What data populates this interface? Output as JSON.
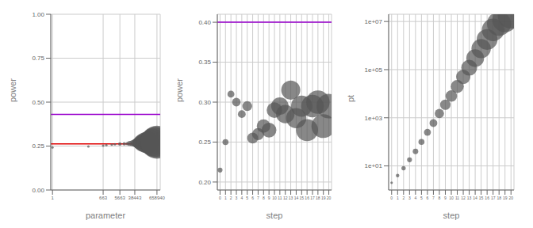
{
  "chart_data": [
    {
      "type": "scatter",
      "xlabel": "parameter",
      "ylabel": "power",
      "log": "x",
      "grid": true,
      "color": "#555555",
      "x": [
        1,
        100,
        663,
        1000,
        2000,
        3000,
        5663,
        10000,
        15000,
        20000,
        28000,
        38443,
        50000,
        65000,
        80000,
        100000,
        150000,
        200000,
        300000,
        400000,
        500000,
        600000,
        658940
      ],
      "values": [
        0.242,
        0.248,
        0.252,
        0.255,
        0.258,
        0.26,
        0.262,
        0.263,
        0.264,
        0.265,
        0.266,
        0.267,
        0.268,
        0.268,
        0.269,
        0.269,
        0.27,
        0.27,
        0.271,
        0.271,
        0.272,
        0.272,
        0.272
      ],
      "sizes": [
        5,
        5,
        5,
        5,
        5,
        5,
        10,
        10,
        10,
        20,
        30,
        50,
        80,
        120,
        180,
        250,
        350,
        400,
        500,
        600,
        700,
        800,
        900
      ],
      "xlim": [
        0.8,
        1000000
      ],
      "xticks": [
        1,
        663,
        5663,
        38443,
        658940
      ],
      "ylim": [
        0.0,
        1.0
      ],
      "yticks": [
        {
          "value": 0,
          "label": "0.00"
        },
        0.25,
        {
          "value": 0.5,
          "label": "0.50"
        },
        0.75,
        {
          "value": 1,
          "label": "1.00"
        }
      ],
      "hlines": [
        {
          "value": 0.262,
          "color": "#e00000"
        },
        {
          "value": 0.43,
          "color": "#9900cc"
        }
      ]
    },
    {
      "type": "scatter",
      "xlabel": "step",
      "ylabel": "power",
      "grid": true,
      "color": "#555555",
      "x": [
        0,
        1,
        2,
        3,
        4,
        5,
        6,
        7,
        8,
        9,
        10,
        11,
        12,
        13,
        14,
        15,
        16,
        17,
        18,
        19,
        20
      ],
      "values": [
        0.215,
        0.25,
        0.31,
        0.3,
        0.285,
        0.295,
        0.255,
        0.26,
        0.27,
        0.265,
        0.29,
        0.295,
        0.285,
        0.315,
        0.28,
        0.295,
        0.265,
        0.295,
        0.3,
        0.27,
        0.295
      ],
      "sizes": [
        20,
        30,
        40,
        60,
        50,
        80,
        100,
        120,
        150,
        180,
        200,
        250,
        280,
        300,
        340,
        370,
        400,
        420,
        450,
        470,
        500
      ],
      "xlim": [
        -0.5,
        20.5
      ],
      "xticks": [
        0,
        1,
        2,
        3,
        4,
        5,
        6,
        7,
        8,
        9,
        10,
        11,
        12,
        13,
        14,
        15,
        16,
        17,
        18,
        19,
        20
      ],
      "ylim": [
        0.19,
        0.41
      ],
      "yticks": [
        {
          "value": 0.2,
          "label": "0.20"
        },
        0.25,
        {
          "value": 0.3,
          "label": "0.30"
        },
        0.35,
        {
          "value": 0.4,
          "label": "0.40"
        }
      ],
      "hlines": [
        {
          "value": 0.4,
          "color": "#9900cc"
        }
      ]
    },
    {
      "type": "scatter",
      "xlabel": "step",
      "ylabel": "pt",
      "log": "y",
      "grid": true,
      "color": "#555555",
      "x": [
        0,
        1,
        2,
        3,
        4,
        5,
        6,
        7,
        8,
        9,
        10,
        11,
        12,
        13,
        14,
        15,
        16,
        17,
        18,
        19,
        20
      ],
      "values": [
        2,
        4,
        8,
        18,
        40,
        100,
        250,
        600,
        1500,
        3500,
        8000,
        20000,
        50000,
        120000,
        300000,
        750000,
        1800000,
        4500000,
        8000000,
        12000000,
        18000000
      ],
      "sizes": [
        5,
        10,
        15,
        20,
        25,
        30,
        40,
        50,
        70,
        90,
        110,
        140,
        170,
        210,
        260,
        310,
        360,
        420,
        480,
        530,
        580
      ],
      "xlim": [
        -0.5,
        20.5
      ],
      "xticks": [
        0,
        1,
        2,
        3,
        4,
        5,
        6,
        7,
        8,
        9,
        10,
        11,
        12,
        13,
        14,
        15,
        16,
        17,
        18,
        19,
        20
      ],
      "ylim": [
        1,
        20000000
      ],
      "yticks": [
        {
          "value": 10,
          "label": "1e+01"
        },
        {
          "value": 1000,
          "label": "1e+03"
        },
        {
          "value": 100000,
          "label": "1e+05"
        },
        {
          "value": 10000000,
          "label": "1e+07"
        }
      ]
    }
  ]
}
